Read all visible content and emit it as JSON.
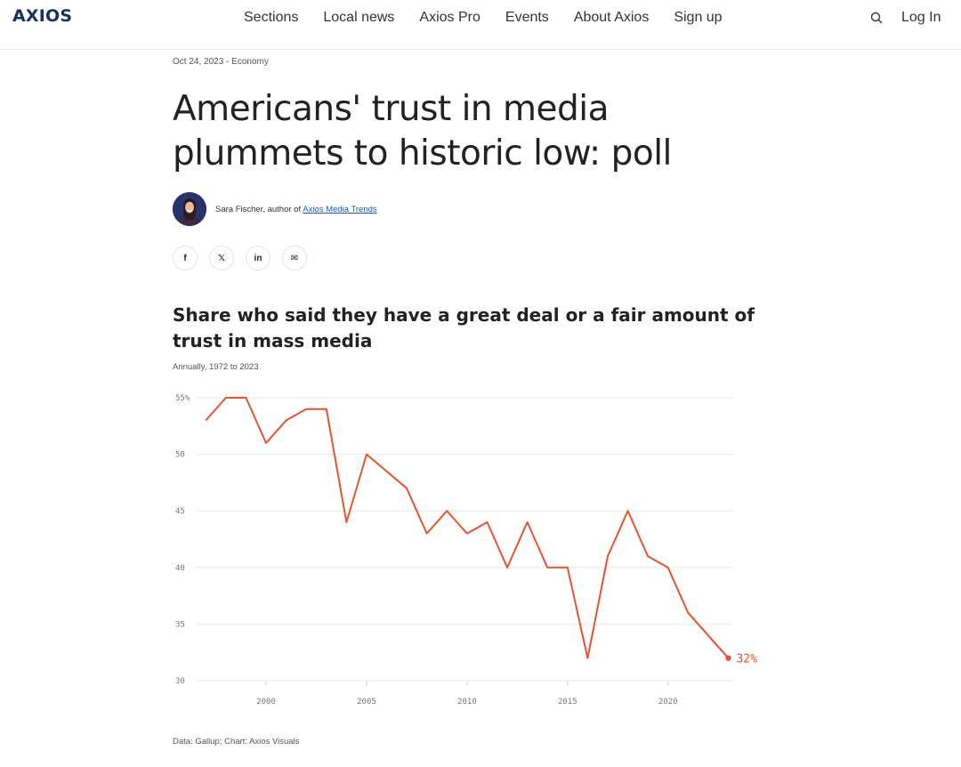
{
  "header": {
    "logo": "AXIOS",
    "nav": [
      "Sections",
      "Local news",
      "Axios Pro",
      "Events",
      "About Axios",
      "Sign up"
    ],
    "search_icon": "search-icon",
    "login": "Log In"
  },
  "article": {
    "dateline": "Oct 24, 2023 - Economy",
    "headline": "Americans' trust in media plummets to historic low: poll",
    "byline_prefix": "Sara Fischer, author of ",
    "byline_link": "Axios Media Trends",
    "share": [
      {
        "icon": "facebook-icon",
        "glyph": "f"
      },
      {
        "icon": "x-icon",
        "glyph": "𝕏"
      },
      {
        "icon": "linkedin-icon",
        "glyph": "in"
      },
      {
        "icon": "email-icon",
        "glyph": "✉"
      }
    ]
  },
  "chart": {
    "title": "Share who said they have a great deal or a fair amount of trust in mass media",
    "subtitle": "Annually, 1972 to 2023",
    "source": "Data: Gallup; Chart: Axios Visuals",
    "end_label": "32%",
    "line_color": "#e8532d"
  },
  "chart_data": {
    "type": "line",
    "title": "Share who said they have a great deal or a fair amount of trust in mass media",
    "subtitle": "Annually, 1972 to 2023",
    "x": [
      1997,
      1998,
      1999,
      2000,
      2001,
      2002,
      2003,
      2004,
      2005,
      2007,
      2008,
      2009,
      2010,
      2011,
      2012,
      2013,
      2014,
      2015,
      2016,
      2017,
      2018,
      2019,
      2020,
      2021,
      2023
    ],
    "series": [
      {
        "values": [
          53,
          55,
          55,
          51,
          53,
          54,
          54,
          44,
          50,
          47,
          43,
          45,
          43,
          44,
          40,
          44,
          40,
          40,
          32,
          41,
          45,
          41,
          40,
          36,
          32
        ]
      }
    ],
    "xlim": [
      1996.5,
      2023.2
    ],
    "ylim": [
      30,
      55
    ],
    "yticks": [
      30,
      35,
      40,
      45,
      50,
      55
    ],
    "ytick_labels": [
      "30",
      "35",
      "40",
      "45",
      "50",
      "55%"
    ],
    "xticks": [
      2000,
      2005,
      2010,
      2015,
      2020
    ],
    "grid": true,
    "legend": "none"
  }
}
